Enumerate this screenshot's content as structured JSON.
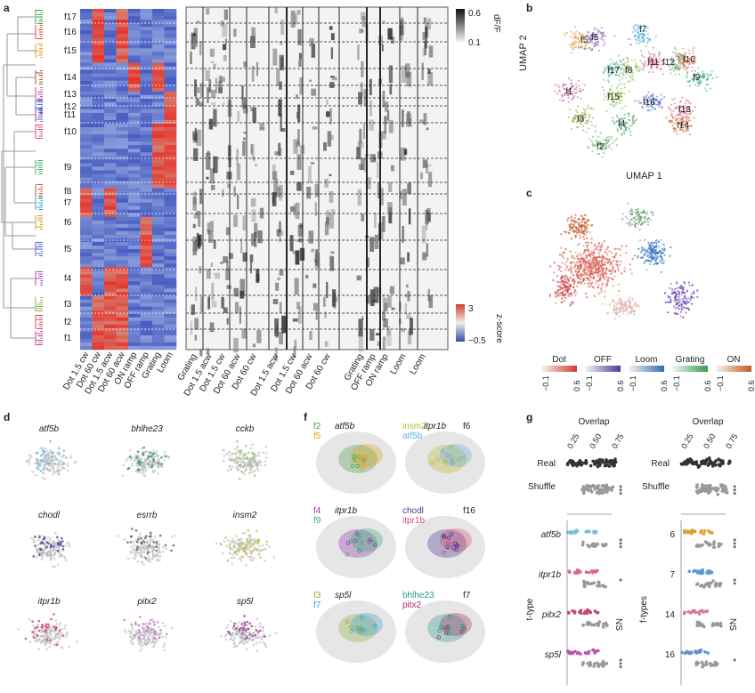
{
  "panel_letters": [
    "a",
    "b",
    "c",
    "d",
    "f",
    "g"
  ],
  "panel_a": {
    "cluster_labels": [
      "f17",
      "f16",
      "f15",
      "f14",
      "f13",
      "f12",
      "f11",
      "f10",
      "f9",
      "f8",
      "f7",
      "f6",
      "f5",
      "f4",
      "f3",
      "f2",
      "f1"
    ],
    "heatmap_columns": [
      "Dot 1.5 cw",
      "Dot 60 cw",
      "Dot 1.5 acw",
      "Dot 60 acw",
      "ON ramp",
      "OFF ramp",
      "Grating",
      "Loom"
    ],
    "trace_columns": [
      "Grating",
      "Dot 1.5 acw",
      "Dot 1.5 cw",
      "Dot 60 acw",
      "Dot 60 cw",
      "Dot 1.5 acw",
      "Dot 1.5 cw",
      "Dot 60 acw",
      "Dot 60 cw",
      "Grating",
      "OFF ramp",
      "ON ramp",
      "Loom",
      "Loom"
    ],
    "dff_scale": {
      "max": "0.6",
      "min": "0.1",
      "label": "dF/F"
    },
    "zscore_scale": {
      "max": "3",
      "min": "−0.5",
      "label": "z-score"
    }
  },
  "panel_b": {
    "cluster_labels": [
      "f5",
      "f5",
      "f7",
      "f17",
      "f8",
      "f11",
      "f12",
      "f10",
      "f9",
      "f1",
      "f15",
      "f16",
      "f13",
      "f3",
      "f4",
      "f14",
      "f2"
    ],
    "xlabel": "UMAP 1",
    "ylabel": "UMAP 2"
  },
  "panel_c": {
    "legend": [
      {
        "name": "Dot",
        "min": "−0.1",
        "max": "0.6",
        "color": "#d23a2a"
      },
      {
        "name": "OFF",
        "min": "−0.1",
        "max": "0.6",
        "color": "#4b3a9a"
      },
      {
        "name": "Loom",
        "min": "−0.1",
        "max": "0.6",
        "color": "#2e6fb0"
      },
      {
        "name": "Grating",
        "min": "−0.1",
        "max": "0.6",
        "color": "#3a9a4a"
      },
      {
        "name": "ON",
        "min": "−0.1",
        "max": "0.6",
        "color": "#c8571e"
      }
    ]
  },
  "panel_d": {
    "genes": [
      "atf5b",
      "bhlhe23",
      "cckb",
      "chodl",
      "esrrb",
      "insm2",
      "itpr1b",
      "pitx2",
      "sp5l"
    ],
    "colors": [
      "#7ab8e0",
      "#3a9a8a",
      "#a0c878",
      "#5a4a9a",
      "#666666",
      "#c8c840",
      "#d04a7a",
      "#c878c8",
      "#a040a0"
    ]
  },
  "panel_f": {
    "tiles": [
      {
        "l1": "f2",
        "l1c": "#4aa04a",
        "l2": "f5",
        "l2c": "#e0a020",
        "gene1": "atf5b",
        "gene2": "",
        "tag": ""
      },
      {
        "l1": "insm2",
        "l1c": "#b8b830",
        "l2": "atf5b",
        "l2c": "#6ab0e0",
        "gene1": "itpr1b",
        "gene2": "",
        "tag": "f6"
      },
      {
        "l1": "f4",
        "l1c": "#8a3ab0",
        "l2": "f9",
        "l2c": "#3ab070",
        "gene1": "itpr1b",
        "gene2": "",
        "tag": ""
      },
      {
        "l1": "chodl",
        "l1c": "#4a3a8a",
        "l2": "itpr1b",
        "l2c": "#d04a7a",
        "gene1": "",
        "gene2": "",
        "tag": "f16"
      },
      {
        "l1": "f3",
        "l1c": "#90b040",
        "l2": "f7",
        "l2c": "#40a0d0",
        "gene1": "sp5l",
        "gene2": "",
        "tag": ""
      },
      {
        "l1": "bhlhe23",
        "l1c": "#2a9a8a",
        "l2": "pitx2",
        "l2c": "#a0306a",
        "gene1": "",
        "gene2": "",
        "tag": "f7"
      }
    ]
  },
  "panel_g": {
    "left": {
      "title": "Overlap",
      "ticks": [
        "0.25",
        "0.50",
        "0.75"
      ],
      "rows_top": [
        "Real",
        "Shuffle"
      ],
      "ylabel": "t-type",
      "rows": [
        "atf5b",
        "itpr1b",
        "pitx2",
        "sp5l"
      ],
      "sig_top": "***",
      "sig": [
        "***",
        "*",
        "NS",
        "***"
      ],
      "colors": [
        "#7ac0e0",
        "#d86a8a",
        "#c04a7a",
        "#c050b0"
      ]
    },
    "right": {
      "title": "Overlap",
      "ticks": [
        "0.25",
        "0.50",
        "0.75"
      ],
      "rows_top": [
        "Real",
        "Shuffle"
      ],
      "ylabel": "f-types",
      "rows": [
        "6",
        "7",
        "14",
        "16"
      ],
      "sig_top": "***",
      "sig": [
        "***",
        "**",
        "NS",
        "*"
      ],
      "colors": [
        "#e0a030",
        "#5a9ad0",
        "#d87a9a",
        "#6a8ad0"
      ]
    }
  }
}
